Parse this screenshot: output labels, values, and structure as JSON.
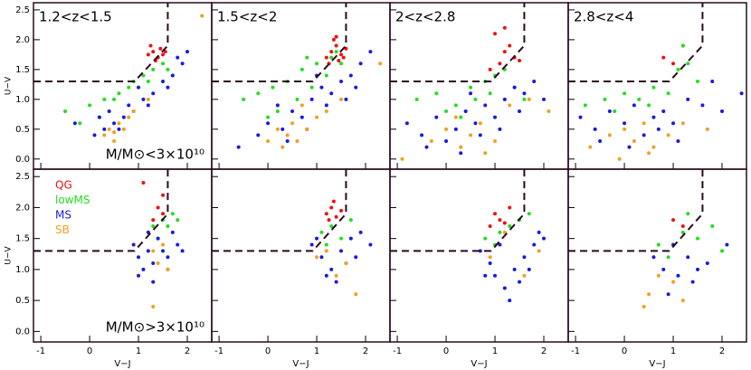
{
  "chart_data": [
    {
      "type": "scatter",
      "annotation": "1.2<z<1.5",
      "mass_label": "M/M⊙<3×10¹⁰",
      "ylabel": "U−V",
      "xlim": [
        -1.15,
        2.5
      ],
      "ylim": [
        -0.17,
        2.62
      ],
      "xticks": [
        -1,
        0,
        1,
        2
      ],
      "yticks": [
        {
          "value": 0,
          "label": "0.0"
        },
        0.5,
        {
          "value": 1,
          "label": "1.0"
        },
        1.5,
        {
          "value": 2,
          "label": "2.0"
        },
        2.5
      ],
      "wedge": {
        "x": [
          0.92,
          1.6
        ],
        "y": [
          1.3,
          1.9
        ]
      },
      "series": [
        {
          "color": "#ee1111",
          "x": [
            1.2,
            1.3,
            1.4,
            1.45,
            1.5,
            1.35,
            1.25,
            1.55
          ],
          "values": [
            1.75,
            1.8,
            1.7,
            1.85,
            1.75,
            1.65,
            1.9,
            1.8
          ]
        },
        {
          "color": "#22dd22",
          "x": [
            -0.5,
            0.0,
            0.3,
            0.6,
            0.9,
            1.1,
            1.3,
            1.5,
            1.6,
            0.2,
            0.8,
            1.2,
            1.7,
            -0.2,
            0.5
          ],
          "values": [
            0.8,
            0.9,
            1.0,
            1.1,
            1.3,
            1.4,
            1.5,
            1.6,
            1.5,
            0.7,
            1.2,
            1.3,
            1.4,
            0.6,
            1.0
          ]
        },
        {
          "color": "#1a1add",
          "x": [
            0.1,
            0.3,
            0.5,
            0.7,
            0.9,
            1.1,
            1.3,
            1.5,
            1.7,
            1.9,
            2.0,
            0.4,
            0.6,
            0.8,
            1.0,
            1.2,
            1.6,
            -0.3,
            0.2,
            1.8
          ],
          "values": [
            0.4,
            0.5,
            0.6,
            0.7,
            0.8,
            1.0,
            1.1,
            1.3,
            1.4,
            1.6,
            1.8,
            0.8,
            0.5,
            0.9,
            1.2,
            0.9,
            1.2,
            0.6,
            0.7,
            1.7
          ]
        },
        {
          "color": "#f0a020",
          "x": [
            0.3,
            0.4,
            0.5,
            0.6,
            0.7,
            0.8,
            0.5,
            0.9,
            1.2,
            2.3
          ],
          "values": [
            0.4,
            0.5,
            0.3,
            0.6,
            0.5,
            0.7,
            0.45,
            0.8,
            1.0,
            2.4
          ]
        }
      ]
    },
    {
      "type": "scatter",
      "annotation": "1.5<z<2",
      "xlim": [
        -1.15,
        2.5
      ],
      "ylim": [
        -0.17,
        2.62
      ],
      "xticks": [
        -1,
        0,
        1,
        2
      ],
      "yticks": [
        0,
        0.5,
        1,
        1.5,
        2,
        2.5
      ],
      "wedge": {
        "x": [
          0.92,
          1.6
        ],
        "y": [
          1.3,
          1.9
        ]
      },
      "series": [
        {
          "color": "#ee1111",
          "x": [
            1.2,
            1.3,
            1.4,
            1.5,
            1.6,
            1.35,
            1.45,
            1.25,
            1.55,
            1.4
          ],
          "values": [
            1.7,
            1.8,
            1.9,
            1.75,
            1.85,
            2.0,
            1.65,
            1.6,
            1.7,
            2.05
          ]
        },
        {
          "color": "#22dd22",
          "x": [
            -0.5,
            -0.2,
            0.1,
            0.4,
            0.7,
            1.0,
            1.3,
            1.5,
            0.2,
            0.6,
            0.9,
            1.2,
            0.0,
            0.8,
            1.4
          ],
          "values": [
            1.0,
            1.1,
            1.2,
            1.3,
            1.5,
            1.6,
            1.7,
            1.6,
            0.8,
            1.0,
            1.2,
            1.4,
            0.7,
            1.7,
            1.8
          ]
        },
        {
          "color": "#1a1add",
          "x": [
            -0.6,
            -0.2,
            0.0,
            0.3,
            0.5,
            0.7,
            0.9,
            1.1,
            1.3,
            1.5,
            1.7,
            1.9,
            2.1,
            0.4,
            0.8,
            1.2,
            1.6,
            0.2,
            1.0,
            1.8
          ],
          "values": [
            0.2,
            0.4,
            0.6,
            0.5,
            0.8,
            0.7,
            1.0,
            1.2,
            1.1,
            1.3,
            1.4,
            1.6,
            1.8,
            0.3,
            0.5,
            0.9,
            1.0,
            0.9,
            1.4,
            1.2
          ]
        },
        {
          "color": "#f0a020",
          "x": [
            0.0,
            0.2,
            0.4,
            0.5,
            0.6,
            0.8,
            1.0,
            1.2,
            0.3,
            0.7,
            1.5,
            2.3
          ],
          "values": [
            0.3,
            0.5,
            0.4,
            0.6,
            0.3,
            0.5,
            0.7,
            0.8,
            0.2,
            0.9,
            1.0,
            1.6
          ]
        }
      ]
    },
    {
      "type": "scatter",
      "annotation": "2<z<2.8",
      "xlim": [
        -1.15,
        2.5
      ],
      "ylim": [
        -0.17,
        2.62
      ],
      "xticks": [
        -1,
        0,
        1,
        2
      ],
      "yticks": [
        0,
        0.5,
        1,
        1.5,
        2,
        2.5
      ],
      "wedge": {
        "x": [
          0.92,
          1.6
        ],
        "y": [
          1.3,
          1.9
        ]
      },
      "series": [
        {
          "color": "#ee1111",
          "x": [
            0.9,
            1.1,
            1.2,
            1.3,
            1.0,
            1.4,
            1.5,
            1.2
          ],
          "values": [
            1.5,
            1.6,
            1.8,
            1.9,
            2.1,
            1.7,
            1.65,
            2.2
          ]
        },
        {
          "color": "#22dd22",
          "x": [
            -0.6,
            -0.2,
            0.2,
            0.5,
            0.8,
            1.0,
            1.2,
            0.3,
            0.6,
            1.4,
            0.0,
            0.9,
            1.6
          ],
          "values": [
            1.0,
            1.1,
            0.9,
            1.2,
            1.3,
            1.4,
            1.5,
            0.7,
            1.0,
            1.2,
            0.8,
            1.1,
            1.0
          ]
        },
        {
          "color": "#1a1add",
          "x": [
            -0.8,
            -0.5,
            -0.2,
            0.0,
            0.2,
            0.4,
            0.6,
            0.8,
            1.0,
            1.2,
            1.4,
            1.6,
            1.8,
            2.0,
            -0.4,
            0.3,
            0.7,
            1.1,
            0.5,
            1.5
          ],
          "values": [
            0.6,
            0.4,
            0.7,
            0.3,
            0.5,
            0.8,
            0.6,
            0.9,
            0.7,
            1.0,
            1.2,
            1.1,
            1.3,
            1.0,
            0.2,
            0.1,
            0.4,
            0.5,
            1.1,
            0.8
          ]
        },
        {
          "color": "#f0a020",
          "x": [
            -0.9,
            -0.3,
            0.0,
            0.3,
            0.5,
            0.7,
            1.0,
            1.3,
            1.7,
            2.1,
            0.2,
            0.8
          ],
          "values": [
            0.0,
            0.3,
            0.5,
            0.2,
            0.4,
            0.6,
            0.3,
            0.9,
            1.0,
            0.8,
            0.7,
            0.1
          ]
        }
      ]
    },
    {
      "type": "scatter",
      "annotation": "2.8<z<4",
      "xlim": [
        -1.15,
        2.5
      ],
      "ylim": [
        -0.17,
        2.62
      ],
      "xticks": [
        -1,
        0,
        1,
        2
      ],
      "yticks": [
        0,
        0.5,
        1,
        1.5,
        2,
        2.5
      ],
      "wedge": {
        "x": [
          0.92,
          1.6
        ],
        "y": [
          1.3,
          1.9
        ]
      },
      "series": [
        {
          "color": "#ee1111",
          "x": [
            0.8,
            1.0,
            1.2
          ],
          "values": [
            1.7,
            1.6,
            1.9
          ]
        },
        {
          "color": "#22dd22",
          "x": [
            -0.8,
            -0.4,
            0.0,
            0.3,
            0.6,
            0.9,
            1.1,
            1.3,
            1.5,
            -0.2,
            0.5,
            1.2
          ],
          "values": [
            0.9,
            1.0,
            1.1,
            1.0,
            1.2,
            1.1,
            1.5,
            1.6,
            1.3,
            0.8,
            0.9,
            1.9
          ]
        },
        {
          "color": "#1a1add",
          "x": [
            -0.9,
            -0.6,
            -0.3,
            0.0,
            0.2,
            0.4,
            0.6,
            0.8,
            1.0,
            1.3,
            1.6,
            2.0,
            2.4,
            -0.5,
            0.1,
            0.7,
            1.1,
            1.8
          ],
          "values": [
            0.7,
            0.5,
            0.8,
            0.6,
            0.9,
            0.4,
            0.7,
            0.8,
            0.6,
            1.0,
            0.9,
            0.8,
            1.1,
            0.3,
            0.2,
            0.5,
            0.3,
            1.3
          ]
        },
        {
          "color": "#f0a020",
          "x": [
            -0.7,
            -0.3,
            0.0,
            0.2,
            0.4,
            0.6,
            0.9,
            1.2,
            1.7,
            -0.1,
            0.5
          ],
          "values": [
            0.2,
            0.4,
            0.5,
            0.3,
            0.6,
            0.2,
            0.4,
            0.6,
            0.5,
            0.0,
            0.1
          ]
        }
      ]
    },
    {
      "type": "scatter",
      "mass_label": "M/M⊙>3×10¹⁰",
      "ylabel": "U−V",
      "xlabel": "V−J",
      "legend": "upper left",
      "xlim": [
        -1.15,
        2.5
      ],
      "ylim": [
        -0.17,
        2.62
      ],
      "xticks": [
        -1,
        0,
        1,
        2
      ],
      "yticks": [
        {
          "value": 0,
          "label": "0.0"
        },
        0.5,
        {
          "value": 1,
          "label": "1.0"
        },
        1.5,
        {
          "value": 2,
          "label": "2.0"
        },
        2.5
      ],
      "wedge": {
        "x": [
          0.92,
          1.6
        ],
        "y": [
          1.3,
          1.9
        ]
      },
      "series": [
        {
          "name": "QG",
          "color": "#ee1111",
          "x": [
            1.4,
            1.5,
            1.3,
            1.5,
            1.1
          ],
          "values": [
            2.0,
            2.2,
            1.8,
            1.9,
            2.4
          ]
        },
        {
          "name": "lowMS",
          "color": "#22dd22",
          "x": [
            1.2,
            1.3,
            1.5,
            1.7,
            1.8,
            1.4,
            1.6
          ],
          "values": [
            1.6,
            1.7,
            1.8,
            1.9,
            1.8,
            1.5,
            1.7
          ]
        },
        {
          "name": "MS",
          "color": "#1a1add",
          "x": [
            0.9,
            1.0,
            1.1,
            1.2,
            1.3,
            1.4,
            1.5,
            1.6,
            1.7,
            1.8,
            1.0,
            1.3,
            1.6,
            1.2,
            1.9
          ],
          "values": [
            1.4,
            1.2,
            1.0,
            1.3,
            1.1,
            1.5,
            1.3,
            1.2,
            1.6,
            1.4,
            0.9,
            0.8,
            1.0,
            1.6,
            1.3
          ]
        },
        {
          "name": "SB",
          "color": "#f0a020",
          "x": [
            1.3,
            1.4,
            1.5,
            1.3,
            1.6
          ],
          "values": [
            1.3,
            1.1,
            1.4,
            0.4,
            1.0
          ]
        }
      ]
    },
    {
      "type": "scatter",
      "xlabel": "V−J",
      "xlim": [
        -1.15,
        2.5
      ],
      "ylim": [
        -0.17,
        2.62
      ],
      "xticks": [
        -1,
        0,
        1,
        2
      ],
      "yticks": [
        0,
        0.5,
        1,
        1.5,
        2,
        2.5
      ],
      "wedge": {
        "x": [
          0.92,
          1.6
        ],
        "y": [
          1.3,
          1.9
        ]
      },
      "series": [
        {
          "color": "#ee1111",
          "x": [
            1.2,
            1.3,
            1.4,
            1.5,
            1.35,
            1.25
          ],
          "values": [
            1.9,
            2.0,
            1.85,
            1.95,
            2.1,
            1.8
          ]
        },
        {
          "color": "#22dd22",
          "x": [
            1.1,
            1.3,
            1.5,
            1.7,
            1.2
          ],
          "values": [
            1.6,
            1.7,
            1.5,
            1.8,
            1.4
          ]
        },
        {
          "color": "#1a1add",
          "x": [
            0.9,
            1.1,
            1.3,
            1.5,
            1.7,
            1.9,
            2.1,
            1.2,
            1.6,
            1.0,
            1.4,
            1.8
          ],
          "values": [
            1.4,
            1.2,
            1.0,
            1.3,
            1.5,
            1.6,
            1.4,
            0.9,
            1.1,
            1.5,
            0.8,
            1.2
          ]
        },
        {
          "color": "#f0a020",
          "x": [
            1.2,
            1.4,
            1.6,
            1.8,
            1.0
          ],
          "values": [
            1.3,
            0.9,
            1.1,
            0.6,
            1.2
          ]
        }
      ]
    },
    {
      "type": "scatter",
      "xlabel": "V−J",
      "xlim": [
        -1.15,
        2.5
      ],
      "ylim": [
        -0.17,
        2.62
      ],
      "xticks": [
        -1,
        0,
        1,
        2
      ],
      "yticks": [
        0,
        0.5,
        1,
        1.5,
        2,
        2.5
      ],
      "wedge": {
        "x": [
          0.92,
          1.6
        ],
        "y": [
          1.3,
          1.9
        ]
      },
      "series": [
        {
          "color": "#ee1111",
          "x": [
            0.9,
            1.0,
            1.1,
            1.2,
            1.3
          ],
          "values": [
            1.7,
            1.9,
            1.8,
            1.75,
            2.0
          ]
        },
        {
          "color": "#22dd22",
          "x": [
            0.8,
            1.1,
            1.3,
            1.5,
            1.7,
            1.0
          ],
          "values": [
            1.5,
            1.6,
            1.7,
            1.8,
            1.9,
            1.4
          ]
        },
        {
          "color": "#1a1add",
          "x": [
            0.7,
            0.9,
            1.0,
            1.2,
            1.4,
            1.6,
            1.8,
            2.0,
            1.1,
            1.3,
            1.5,
            0.8,
            1.7,
            1.9
          ],
          "values": [
            1.3,
            1.1,
            0.9,
            0.7,
            1.0,
            1.2,
            1.4,
            1.5,
            1.4,
            0.5,
            0.8,
            0.9,
            1.0,
            1.6
          ]
        },
        {
          "color": "#f0a020",
          "x": [
            0.9,
            1.2,
            1.6,
            1.9
          ],
          "values": [
            1.2,
            1.6,
            0.9,
            1.3
          ]
        }
      ]
    },
    {
      "type": "scatter",
      "xlabel": "V−J",
      "xlim": [
        -1.15,
        2.5
      ],
      "ylim": [
        -0.17,
        2.62
      ],
      "xticks": [
        -1,
        0,
        1,
        2
      ],
      "yticks": [
        0,
        0.5,
        1,
        1.5,
        2,
        2.5
      ],
      "wedge": {
        "x": [
          0.92,
          1.6
        ],
        "y": [
          1.3,
          1.9
        ]
      },
      "series": [
        {
          "color": "#ee1111",
          "x": [
            1.0,
            1.2
          ],
          "values": [
            1.8,
            1.7
          ]
        },
        {
          "color": "#22dd22",
          "x": [
            0.7,
            1.2,
            1.5,
            1.8,
            2.0,
            1.3,
            0.9
          ],
          "values": [
            1.4,
            1.6,
            1.5,
            1.7,
            1.3,
            1.9,
            1.2
          ]
        },
        {
          "color": "#1a1add",
          "x": [
            0.6,
            0.8,
            1.0,
            1.1,
            1.3,
            1.5,
            1.7,
            2.1,
            0.9,
            1.4
          ],
          "values": [
            1.2,
            1.0,
            1.4,
            0.9,
            1.2,
            1.0,
            1.1,
            1.4,
            0.6,
            0.8
          ]
        },
        {
          "color": "#f0a020",
          "x": [
            0.5,
            0.7,
            1.0,
            0.4,
            1.2
          ],
          "values": [
            0.6,
            0.9,
            0.8,
            0.4,
            0.5
          ]
        }
      ]
    }
  ]
}
